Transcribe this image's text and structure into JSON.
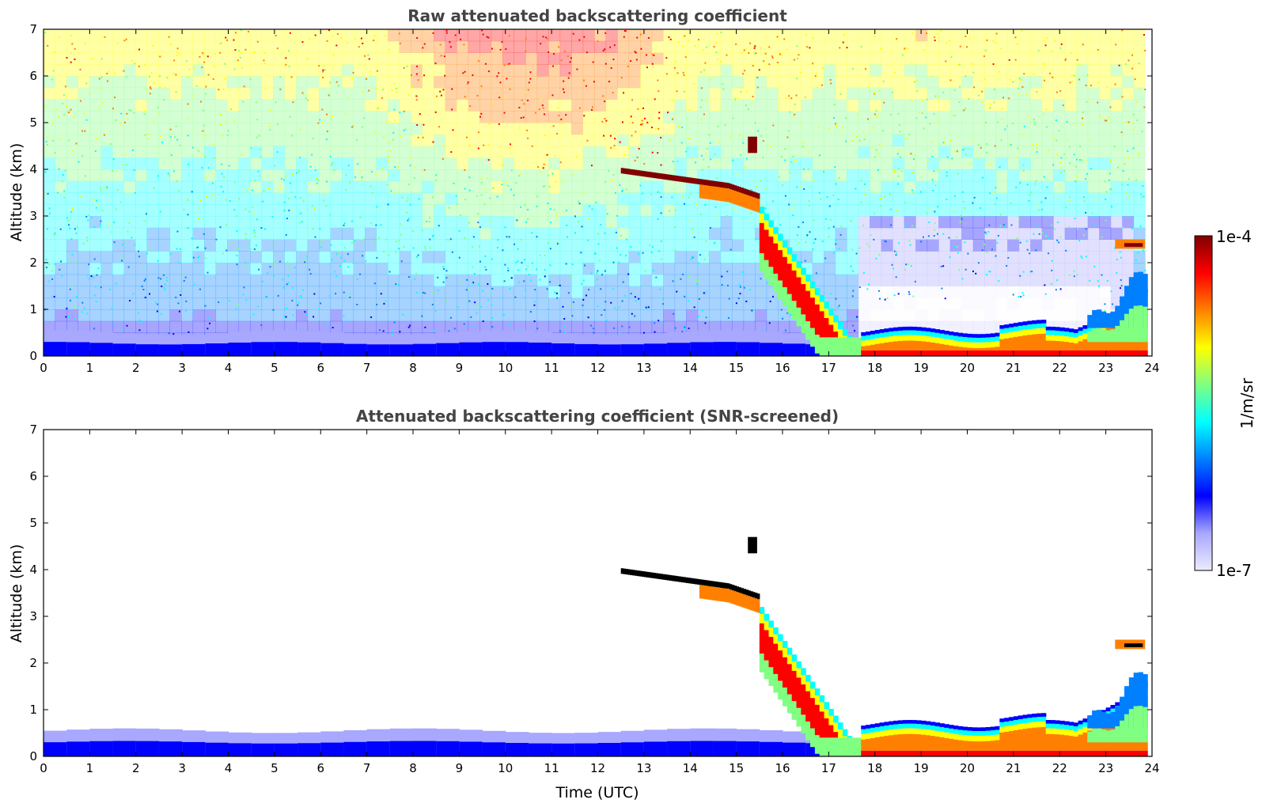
{
  "colors": {
    "jet": [
      "#ebebff",
      "#a8a8ff",
      "#0000ff",
      "#0080ff",
      "#00ffff",
      "#80ff80",
      "#ffff00",
      "#ff8000",
      "#ff0000",
      "#800000"
    ],
    "saturated": "#000000"
  },
  "colorbar": {
    "max_label": "1e-4",
    "min_label": "1e-7",
    "unit_label": "1/m/sr",
    "scale": "log"
  },
  "chart_data": [
    {
      "type": "heatmap",
      "title": "Raw attenuated backscattering coefficient",
      "xlabel": "",
      "ylabel": "Altitude (km)",
      "xlim": [
        0,
        24
      ],
      "ylim": [
        0,
        7
      ],
      "xticks": [
        "0",
        "1",
        "2",
        "3",
        "4",
        "5",
        "6",
        "7",
        "8",
        "9",
        "10",
        "11",
        "12",
        "13",
        "14",
        "15",
        "16",
        "17",
        "18",
        "19",
        "20",
        "21",
        "22",
        "23",
        "24"
      ],
      "yticks": [
        "0",
        "1",
        "2",
        "3",
        "4",
        "5",
        "6",
        "7"
      ],
      "data_end_time": 23.85,
      "noise": "noisy background increasing with altitude (orange/red aloft near 8-13 UTC)",
      "features": [
        {
          "name": "surface layer",
          "time": [
            0,
            17.0
          ],
          "altitude": [
            0,
            0.5
          ],
          "level": "low"
        },
        {
          "name": "mid-level cloud",
          "time": [
            12.5,
            15.5
          ],
          "altitude": [
            3.4,
            4.0
          ],
          "level": "saturated"
        },
        {
          "name": "descending layer",
          "time": [
            15.5,
            17.7
          ],
          "altitude": [
            0,
            3.2
          ],
          "level": "high"
        },
        {
          "name": "boundary layer",
          "time": [
            17.7,
            23.85
          ],
          "altitude": [
            0,
            0.7
          ],
          "level": "high"
        },
        {
          "name": "evening layer",
          "time": [
            22.5,
            23.85
          ],
          "altitude": [
            0,
            2.5
          ],
          "level": "medium"
        }
      ]
    },
    {
      "type": "heatmap",
      "title": "Attenuated backscattering coefficient (SNR-screened)",
      "xlabel": "Time (UTC)",
      "ylabel": "Altitude (km)",
      "xlim": [
        0,
        24
      ],
      "ylim": [
        0,
        7
      ],
      "xticks": [
        "0",
        "1",
        "2",
        "3",
        "4",
        "5",
        "6",
        "7",
        "8",
        "9",
        "10",
        "11",
        "12",
        "13",
        "14",
        "15",
        "16",
        "17",
        "18",
        "19",
        "20",
        "21",
        "22",
        "23",
        "24"
      ],
      "yticks": [
        "0",
        "1",
        "2",
        "3",
        "4",
        "5",
        "6",
        "7"
      ],
      "data_end_time": 23.85,
      "noise": "screened (background removed)",
      "features": [
        {
          "name": "surface layer",
          "time": [
            0,
            17.0
          ],
          "altitude": [
            0,
            0.55
          ],
          "level": "low"
        },
        {
          "name": "mid-level cloud",
          "time": [
            12.5,
            15.5
          ],
          "altitude": [
            3.4,
            4.0
          ],
          "level": "saturated"
        },
        {
          "name": "descending layer",
          "time": [
            15.5,
            17.7
          ],
          "altitude": [
            0,
            3.2
          ],
          "level": "high"
        },
        {
          "name": "boundary layer",
          "time": [
            17.7,
            23.85
          ],
          "altitude": [
            0,
            0.85
          ],
          "level": "high"
        },
        {
          "name": "evening layer",
          "time": [
            22.5,
            23.85
          ],
          "altitude": [
            0,
            2.5
          ],
          "level": "medium"
        }
      ]
    }
  ]
}
